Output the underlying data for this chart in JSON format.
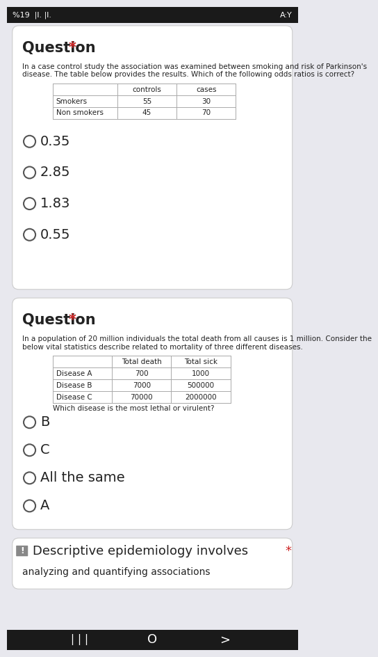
{
  "bg_color": "#e8e8ee",
  "card_color": "#ffffff",
  "status_bar_bg": "#1a1a1a",
  "q1_title": "Question",
  "q1_star": "*",
  "q1_body": "In a case control study the association was examined between smoking and risk of Parkinson's\ndisease. The table below provides the results. Which of the following odds ratios is correct?",
  "q1_table_headers": [
    "",
    "controls",
    "cases"
  ],
  "q1_table_rows": [
    [
      "Smokers",
      "55",
      "30"
    ],
    [
      "Non smokers",
      "45",
      "70"
    ]
  ],
  "q1_options": [
    "0.35",
    "2.85",
    "1.83",
    "0.55"
  ],
  "q2_title": "Question",
  "q2_star": "*",
  "q2_body": "In a population of 20 million individuals the total death from all causes is 1 million. Consider the\nbelow vital statistics describe related to mortality of three different diseases.",
  "q2_table_headers": [
    "",
    "Total death",
    "Total sick"
  ],
  "q2_table_rows": [
    [
      "Disease A",
      "700",
      "1000"
    ],
    [
      "Disease B",
      "7000",
      "500000"
    ],
    [
      "Disease C",
      "70000",
      "2000000"
    ]
  ],
  "q2_sub": "Which disease is the most lethal or virulent?",
  "q2_options": [
    "B",
    "C",
    "All the same",
    "A"
  ],
  "q3_icon": "!",
  "q3_text": "Descriptive epidemiology involves",
  "q3_sub": "analyzing and quantifying associations",
  "q3_star": "*",
  "nav_bg": "#1a1a1a",
  "title_fontsize": 15,
  "body_fontsize": 7.5,
  "option_fontsize": 14,
  "table_fontsize": 7.5,
  "red_color": "#cc2222",
  "text_color": "#222222",
  "table_border_color": "#aaaaaa",
  "option_circle_color": "#555555",
  "status_left": "%19  |l. |l.",
  "status_right": "A:Y"
}
